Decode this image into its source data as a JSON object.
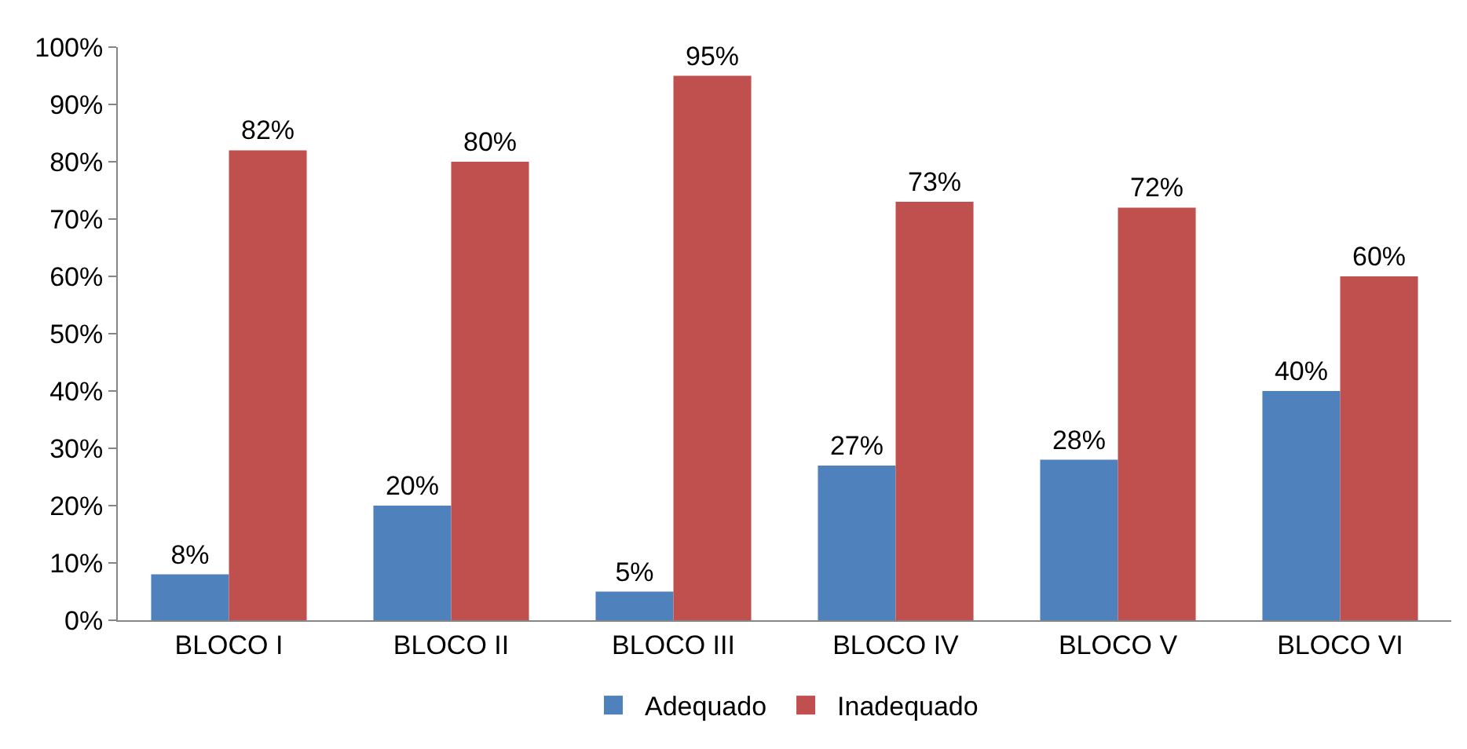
{
  "chart_data": {
    "type": "bar",
    "categories": [
      "BLOCO I",
      "BLOCO II",
      "BLOCO III",
      "BLOCO IV",
      "BLOCO V",
      "BLOCO VI"
    ],
    "series": [
      {
        "name": "Adequado",
        "color": "#4f81bd",
        "values": [
          8,
          20,
          5,
          27,
          28,
          40
        ],
        "value_labels": [
          "8%",
          "20%",
          "5%",
          "27%",
          "28%",
          "40%"
        ]
      },
      {
        "name": "Inadequado",
        "color": "#c0504d",
        "values": [
          82,
          80,
          95,
          73,
          72,
          60
        ],
        "value_labels": [
          "82%",
          "80%",
          "95%",
          "73%",
          "72%",
          "60%"
        ]
      }
    ],
    "ylim": [
      0,
      100
    ],
    "yticks": [
      {
        "value": 0,
        "label": "0%"
      },
      {
        "value": 10,
        "label": "10%"
      },
      {
        "value": 20,
        "label": "20%"
      },
      {
        "value": 30,
        "label": "30%"
      },
      {
        "value": 40,
        "label": "40%"
      },
      {
        "value": 50,
        "label": "50%"
      },
      {
        "value": 60,
        "label": "60%"
      },
      {
        "value": 70,
        "label": "70%"
      },
      {
        "value": 80,
        "label": "80%"
      },
      {
        "value": 90,
        "label": "90%"
      },
      {
        "value": 100,
        "label": "100%"
      }
    ],
    "legend": "bottom"
  }
}
